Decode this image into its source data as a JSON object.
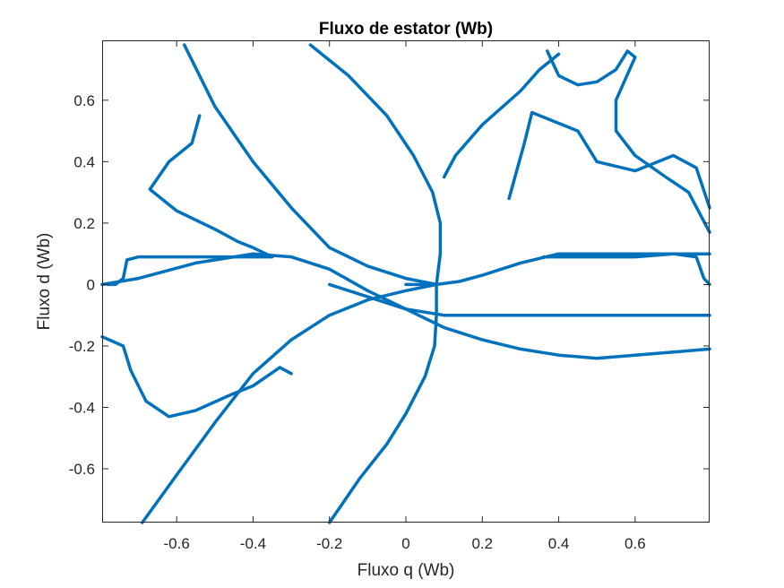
{
  "chart_data": {
    "type": "line",
    "title": "Fluxo de estator (Wb)",
    "xlabel": "Fluxo q (Wb)",
    "ylabel": "Fluxo d (Wb)",
    "xlim": [
      -0.795,
      0.795
    ],
    "ylim": [
      -0.775,
      0.795
    ],
    "xticks": [
      -0.6,
      -0.4,
      -0.2,
      0,
      0.2,
      0.4,
      0.6
    ],
    "xtick_labels": [
      "-0.6",
      "-0.4",
      "-0.2",
      "0",
      "0.2",
      "0.4",
      "0.6"
    ],
    "yticks": [
      -0.6,
      -0.4,
      -0.2,
      0,
      0.2,
      0.4,
      0.6
    ],
    "ytick_labels": [
      "-0.6",
      "-0.4",
      "-0.2",
      "0",
      "0.2",
      "0.4",
      "0.6"
    ],
    "grid": false,
    "box": true,
    "line_color": "#0072BD",
    "series": [
      {
        "points": [
          [
            0,
            0
          ],
          [
            0.08,
            0.0
          ],
          [
            0.14,
            0.01
          ],
          [
            0.2,
            0.03
          ],
          [
            0.3,
            0.07
          ],
          [
            0.4,
            0.1
          ],
          [
            0.5,
            0.1
          ],
          [
            0.6,
            0.1
          ],
          [
            0.7,
            0.1
          ],
          [
            0.795,
            0.1
          ]
        ]
      },
      {
        "points": [
          [
            0.08,
            0.0
          ],
          [
            0.09,
            0.1
          ],
          [
            0.09,
            0.2
          ],
          [
            0.07,
            0.3
          ],
          [
            0.02,
            0.42
          ],
          [
            -0.05,
            0.55
          ],
          [
            -0.15,
            0.68
          ],
          [
            -0.25,
            0.78
          ]
        ]
      },
      {
        "points": [
          [
            0.08,
            0.0
          ],
          [
            0.08,
            -0.1
          ],
          [
            0.075,
            -0.2
          ],
          [
            0.05,
            -0.3
          ],
          [
            0.0,
            -0.42
          ],
          [
            -0.05,
            -0.52
          ],
          [
            -0.12,
            -0.63
          ],
          [
            -0.2,
            -0.775
          ]
        ]
      },
      {
        "points": [
          [
            0.08,
            0.0
          ],
          [
            0.0,
            -0.02
          ],
          [
            -0.1,
            -0.05
          ],
          [
            -0.2,
            -0.1
          ],
          [
            -0.3,
            -0.18
          ],
          [
            -0.4,
            -0.29
          ],
          [
            -0.5,
            -0.45
          ],
          [
            -0.6,
            -0.62
          ],
          [
            -0.69,
            -0.775
          ]
        ]
      },
      {
        "points": [
          [
            0.08,
            0.0
          ],
          [
            0.0,
            0.02
          ],
          [
            -0.1,
            0.06
          ],
          [
            -0.2,
            0.12
          ],
          [
            -0.3,
            0.25
          ],
          [
            -0.4,
            0.4
          ],
          [
            -0.5,
            0.58
          ],
          [
            -0.58,
            0.78
          ]
        ]
      },
      {
        "points": [
          [
            -0.795,
            0.0
          ],
          [
            -0.7,
            0.02
          ],
          [
            -0.55,
            0.07
          ],
          [
            -0.4,
            0.1
          ],
          [
            -0.3,
            0.09
          ],
          [
            -0.2,
            0.05
          ],
          [
            -0.1,
            -0.02
          ],
          [
            0.0,
            -0.08
          ],
          [
            0.1,
            -0.1
          ],
          [
            0.3,
            -0.1
          ],
          [
            0.5,
            -0.1
          ],
          [
            0.795,
            -0.1
          ]
        ]
      },
      {
        "points": [
          [
            -0.2,
            0.0
          ],
          [
            -0.1,
            -0.04
          ],
          [
            0.0,
            -0.08
          ],
          [
            0.1,
            -0.14
          ],
          [
            0.2,
            -0.18
          ],
          [
            0.3,
            -0.21
          ],
          [
            0.4,
            -0.23
          ],
          [
            0.5,
            -0.24
          ],
          [
            0.6,
            -0.23
          ],
          [
            0.7,
            -0.22
          ],
          [
            0.795,
            -0.21
          ]
        ]
      },
      {
        "points": [
          [
            -0.795,
            -0.17
          ],
          [
            -0.74,
            -0.2
          ],
          [
            -0.72,
            -0.28
          ],
          [
            -0.68,
            -0.38
          ],
          [
            -0.62,
            -0.43
          ],
          [
            -0.55,
            -0.41
          ],
          [
            -0.46,
            -0.36
          ],
          [
            -0.4,
            -0.33
          ],
          [
            -0.33,
            -0.27
          ],
          [
            -0.3,
            -0.29
          ]
        ]
      },
      {
        "points": [
          [
            -0.78,
            0.0
          ],
          [
            -0.76,
            0.0
          ],
          [
            -0.74,
            0.02
          ],
          [
            -0.73,
            0.08
          ],
          [
            -0.7,
            0.09
          ],
          [
            -0.55,
            0.09
          ],
          [
            -0.4,
            0.09
          ],
          [
            -0.35,
            0.09
          ],
          [
            -0.4,
            0.12
          ],
          [
            -0.44,
            0.14
          ],
          [
            -0.5,
            0.18
          ],
          [
            -0.6,
            0.24
          ],
          [
            -0.67,
            0.31
          ],
          [
            -0.62,
            0.4
          ],
          [
            -0.56,
            0.46
          ],
          [
            -0.54,
            0.55
          ]
        ]
      },
      {
        "points": [
          [
            0.27,
            0.28
          ],
          [
            0.31,
            0.46
          ],
          [
            0.33,
            0.56
          ],
          [
            0.37,
            0.54
          ],
          [
            0.45,
            0.5
          ],
          [
            0.5,
            0.4
          ],
          [
            0.6,
            0.37
          ],
          [
            0.7,
            0.42
          ],
          [
            0.76,
            0.38
          ],
          [
            0.795,
            0.25
          ]
        ]
      },
      {
        "points": [
          [
            0.1,
            0.35
          ],
          [
            0.13,
            0.42
          ],
          [
            0.2,
            0.52
          ],
          [
            0.3,
            0.63
          ],
          [
            0.35,
            0.7
          ],
          [
            0.4,
            0.75
          ]
        ]
      },
      {
        "points": [
          [
            0.36,
            0.09
          ],
          [
            0.4,
            0.09
          ],
          [
            0.5,
            0.09
          ],
          [
            0.6,
            0.09
          ],
          [
            0.7,
            0.1
          ],
          [
            0.76,
            0.09
          ],
          [
            0.78,
            0.02
          ],
          [
            0.795,
            0.0
          ]
        ]
      },
      {
        "points": [
          [
            0.37,
            0.76
          ],
          [
            0.4,
            0.68
          ],
          [
            0.45,
            0.65
          ],
          [
            0.5,
            0.66
          ],
          [
            0.55,
            0.7
          ],
          [
            0.58,
            0.76
          ],
          [
            0.6,
            0.74
          ],
          [
            0.55,
            0.6
          ],
          [
            0.55,
            0.5
          ],
          [
            0.6,
            0.42
          ],
          [
            0.68,
            0.35
          ],
          [
            0.74,
            0.3
          ],
          [
            0.795,
            0.17
          ]
        ]
      }
    ]
  }
}
